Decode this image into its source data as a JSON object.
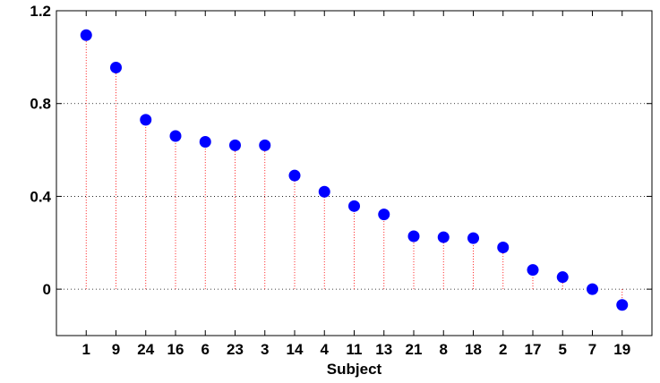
{
  "chart_data": {
    "type": "scatter",
    "style": "stem",
    "xlabel": "Subject",
    "ylabel": "",
    "title": "",
    "categories": [
      "1",
      "9",
      "24",
      "16",
      "6",
      "23",
      "3",
      "14",
      "4",
      "11",
      "13",
      "21",
      "8",
      "18",
      "2",
      "17",
      "5",
      "7",
      "19"
    ],
    "values": [
      1.095,
      0.955,
      0.73,
      0.66,
      0.635,
      0.62,
      0.62,
      0.49,
      0.42,
      0.358,
      0.322,
      0.228,
      0.224,
      0.22,
      0.18,
      0.083,
      0.052,
      0.0,
      -0.068
    ],
    "ylim": [
      -0.2,
      1.2
    ],
    "yticks": [
      "0",
      "0.4",
      "0.8",
      "1.2"
    ],
    "ytick_values": [
      0,
      0.4,
      0.8,
      1.2
    ],
    "grid": true,
    "colors": {
      "marker": "#0000ff",
      "stem": "#ff0000",
      "grid": "#000000",
      "axes": "#000000"
    }
  }
}
